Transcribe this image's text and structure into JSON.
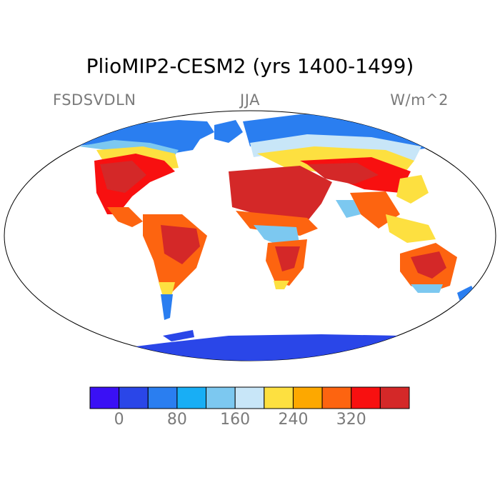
{
  "title": "PlioMIP2-CESM2 (yrs 1400-1499)",
  "labels": {
    "left": "FSDSVDLN",
    "center": "JJA",
    "right": "W/m^2"
  },
  "colorbar": {
    "colors": [
      "#3a10f5",
      "#2a46e8",
      "#2a7ef0",
      "#18aef5",
      "#7cc8f0",
      "#c8e6f8",
      "#fde040",
      "#fda800",
      "#fd6410",
      "#f81010",
      "#d42828"
    ],
    "tick_labels": [
      "0",
      "80",
      "160",
      "240",
      "320"
    ]
  }
}
